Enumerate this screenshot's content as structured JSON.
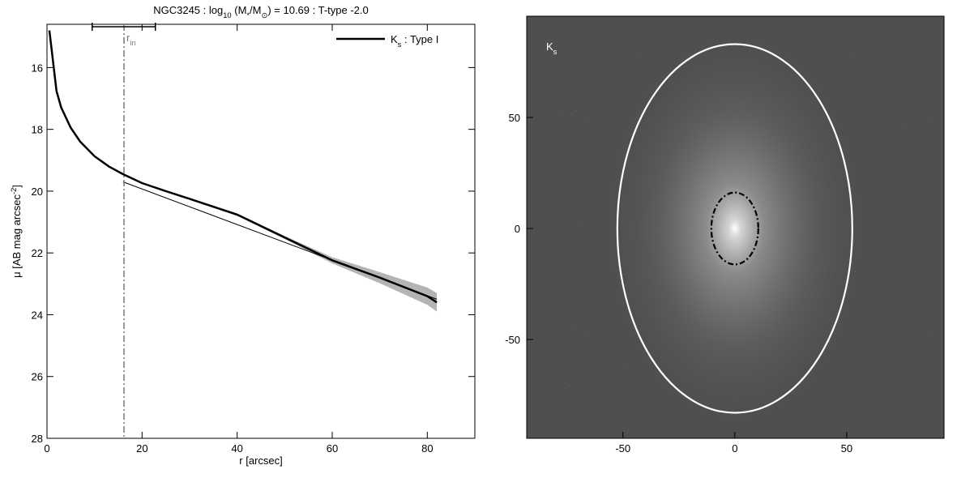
{
  "chart_data": [
    {
      "type": "line",
      "title": [
        {
          "text": "NGC3245 : log"
        },
        {
          "text": "10",
          "sub": true
        },
        {
          "text": " (M"
        },
        {
          "text": "*",
          "sub": true
        },
        {
          "text": "/M"
        },
        {
          "text": "⊙",
          "sub": true
        },
        {
          "text": ") = 10.69 : T-type -2.0"
        }
      ],
      "xlabel": "r [arcsec]",
      "ylabel": [
        {
          "text": "μ [AB mag arcsec"
        },
        {
          "text": "-2",
          "sup": true
        },
        {
          "text": "]"
        }
      ],
      "xlim": [
        0,
        90
      ],
      "xticks": [
        0,
        20,
        40,
        60,
        80
      ],
      "ylim": [
        28,
        14.6
      ],
      "yticks": [
        16,
        18,
        20,
        22,
        24,
        26,
        28
      ],
      "x": [
        0.5,
        1,
        2,
        3,
        5,
        7,
        10,
        13,
        16,
        20,
        25,
        30,
        40,
        50,
        60,
        70,
        80,
        82
      ],
      "series": [
        {
          "name": [
            {
              "text": "K"
            },
            {
              "text": "s",
              "sub": true
            },
            {
              "text": " : Type I"
            }
          ],
          "color": "#000000",
          "band_color": "#b4b4b4",
          "values": [
            14.8,
            15.45,
            16.76,
            17.3,
            17.95,
            18.4,
            18.87,
            19.2,
            19.45,
            19.74,
            20.0,
            20.25,
            20.76,
            21.5,
            22.24,
            22.8,
            23.4,
            23.6
          ],
          "errors": [
            0.02,
            0.02,
            0.02,
            0.02,
            0.02,
            0.02,
            0.02,
            0.02,
            0.02,
            0.02,
            0.02,
            0.03,
            0.04,
            0.05,
            0.1,
            0.18,
            0.28,
            0.3
          ]
        }
      ],
      "fit": {
        "x": [
          16,
          82
        ],
        "values": [
          19.7,
          23.5
        ],
        "color": "#000000"
      },
      "r_in": 16.2,
      "r_in_range": [
        9.5,
        22.8
      ],
      "r_in_label": [
        {
          "text": "r"
        },
        {
          "text": "in",
          "sub": true
        }
      ],
      "legend": "upper right"
    },
    {
      "type": "image",
      "label": [
        {
          "text": "K"
        },
        {
          "text": "s",
          "sub": true
        }
      ],
      "xlim": [
        -93,
        93.5
      ],
      "xticks": [
        -50,
        0,
        50
      ],
      "ylim": [
        -94.5,
        95.6
      ],
      "yticks": [
        -50,
        0,
        50
      ],
      "ellipses": [
        {
          "a": 52.5,
          "b": 83,
          "color": "#ffffff",
          "style": "solid"
        },
        {
          "a": 10.5,
          "b": 16.2,
          "color": "#000000",
          "style": "dashdot"
        }
      ]
    }
  ]
}
